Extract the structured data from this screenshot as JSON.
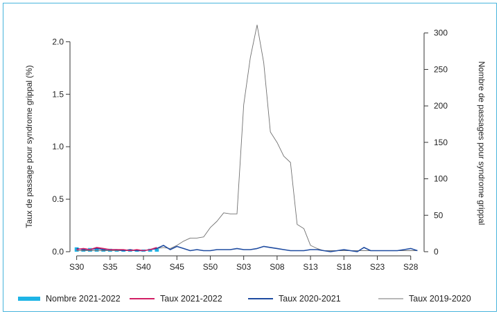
{
  "chart_data": {
    "type": "line",
    "y_left_label": "Taux de passage pour syndrome grippal (%)",
    "y_right_label": "Nombre de passages pour syndrome grippal",
    "y_left_ticks": [
      "0.0",
      "0.5",
      "1.0",
      "1.5",
      "2.0"
    ],
    "y_left_tick_values": [
      0,
      0.5,
      1.0,
      1.5,
      2.0
    ],
    "y_left_lim": [
      0,
      2.2
    ],
    "y_right_ticks": [
      "0",
      "50",
      "100",
      "150",
      "200",
      "250",
      "300"
    ],
    "y_right_tick_values": [
      0,
      50,
      100,
      150,
      200,
      250,
      300
    ],
    "y_right_lim": [
      0,
      316.8
    ],
    "x_tick_labels": [
      "S30",
      "S35",
      "S40",
      "S45",
      "S50",
      "S03",
      "S08",
      "S13",
      "S18",
      "S23",
      "S28"
    ],
    "x_tick_positions": [
      0,
      5,
      10,
      15,
      20,
      25,
      30,
      35,
      40,
      45,
      50
    ],
    "x_lim": [
      -1,
      52
    ],
    "series": [
      {
        "name": "Nombre 2021-2022",
        "axis": "right",
        "kind": "bar",
        "color": "#1eb4e6",
        "x": [
          0,
          1,
          2,
          3,
          4,
          5,
          6,
          7,
          8,
          9,
          10,
          11,
          12
        ],
        "values": [
          6,
          4,
          5,
          5,
          4,
          4,
          3,
          3,
          3,
          3,
          3,
          4,
          4
        ]
      },
      {
        "name": "Taux 2021-2022",
        "axis": "left",
        "kind": "line",
        "color": "#d21e64",
        "x": [
          0,
          1,
          2,
          3,
          4,
          5,
          6,
          7,
          8,
          9,
          10,
          11,
          12
        ],
        "values": [
          0.02,
          0.03,
          0.02,
          0.04,
          0.03,
          0.02,
          0.02,
          0.02,
          0.01,
          0.02,
          0.01,
          0.02,
          0.04
        ]
      },
      {
        "name": "Taux 2020-2021",
        "axis": "left",
        "kind": "line",
        "color": "#1e4ba0",
        "x": [
          0,
          1,
          2,
          3,
          4,
          5,
          6,
          7,
          8,
          9,
          10,
          11,
          12,
          13,
          14,
          15,
          16,
          17,
          18,
          19,
          20,
          21,
          22,
          23,
          24,
          25,
          26,
          27,
          28,
          29,
          30,
          31,
          32,
          33,
          34,
          35,
          36,
          37,
          38,
          39,
          40,
          41,
          42,
          43,
          44,
          45,
          46,
          47,
          48,
          49,
          50,
          51
        ],
        "values": [
          0.03,
          0.02,
          0.02,
          0.03,
          0.02,
          0.02,
          0.02,
          0.01,
          0.02,
          0.01,
          0.01,
          0.02,
          0.03,
          0.06,
          0.02,
          0.05,
          0.03,
          0.01,
          0.02,
          0.01,
          0.01,
          0.02,
          0.02,
          0.02,
          0.03,
          0.02,
          0.02,
          0.03,
          0.05,
          0.04,
          0.03,
          0.02,
          0.01,
          0.01,
          0.01,
          0.02,
          0.02,
          0.01,
          0.0,
          0.01,
          0.02,
          0.01,
          0.0,
          0.04,
          0.01,
          0.01,
          0.01,
          0.01,
          0.01,
          0.02,
          0.03,
          0.01
        ]
      },
      {
        "name": "Taux 2019-2020",
        "axis": "left",
        "kind": "line",
        "color": "#707070",
        "x": [
          0,
          1,
          2,
          3,
          4,
          5,
          6,
          7,
          8,
          9,
          10,
          11,
          12,
          13,
          14,
          15,
          16,
          17,
          18,
          19,
          20,
          21,
          22,
          23,
          24,
          25,
          26,
          27,
          28,
          29,
          30,
          31,
          32,
          33,
          34,
          35,
          36,
          37,
          38,
          39,
          40,
          41,
          42,
          43,
          44,
          45,
          46,
          47,
          48,
          49,
          50,
          51
        ],
        "values": [
          0.01,
          0.01,
          0.01,
          0.01,
          0.01,
          0.01,
          0.01,
          0.01,
          0.01,
          0.01,
          0.01,
          0.02,
          0.03,
          0.04,
          0.03,
          0.06,
          0.1,
          0.13,
          0.13,
          0.14,
          0.23,
          0.29,
          0.37,
          0.36,
          0.36,
          1.4,
          1.85,
          2.16,
          1.8,
          1.14,
          1.04,
          0.91,
          0.85,
          0.26,
          0.22,
          0.06,
          0.03,
          0.01,
          0.01,
          0.01,
          0.01,
          0.01,
          0.01,
          0.01,
          0.01,
          0.01,
          0.01,
          0.01,
          0.01,
          0.01,
          0.01,
          0.01
        ]
      }
    ],
    "legend_position": "bottom",
    "grid": false
  }
}
